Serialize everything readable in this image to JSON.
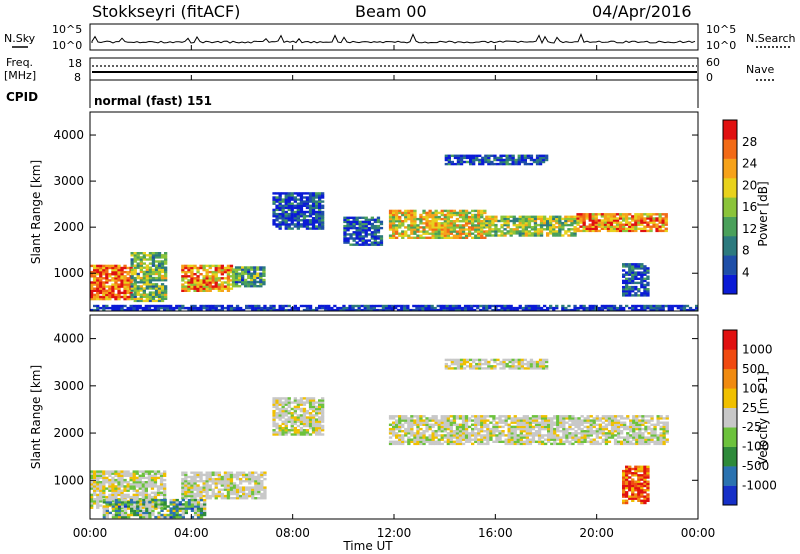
{
  "header": {
    "radar": "Stokkseyri (fitACF)",
    "beam": "Beam 00",
    "date": "04/Apr/2016"
  },
  "noise_panel": {
    "left_label": "N.Sky",
    "left_ticks": [
      "10^5",
      "10^0"
    ],
    "right_ticks": [
      "10^5",
      "10^0"
    ],
    "right_label": "N.Search"
  },
  "freq_panel": {
    "left_label_1": "Freq.",
    "left_label_2": "[MHz]",
    "left_ticks": [
      "18",
      "8"
    ],
    "right_ticks": [
      "60",
      "0"
    ],
    "right_label": "Nave"
  },
  "cpid": {
    "label": "CPID",
    "value": "normal (fast) 151"
  },
  "chart_data": [
    {
      "type": "heatmap",
      "title": "",
      "xlabel": "",
      "ylabel": "Slant Range [km]",
      "xlim": [
        0,
        24
      ],
      "ylim": [
        180,
        4500
      ],
      "yticks": [
        "1000",
        "2000",
        "3000",
        "4000"
      ],
      "colorbar": {
        "label": "Power [dB]",
        "ticks": [
          "4",
          "8",
          "12",
          "16",
          "20",
          "24",
          "28"
        ],
        "range": [
          0,
          32
        ],
        "colors": [
          "#0b1bd6",
          "#1f4fa8",
          "#2c7a7e",
          "#4aa05a",
          "#8bc43a",
          "#e8d21c",
          "#f6a21a",
          "#f26a16",
          "#e01010"
        ]
      },
      "regions": [
        {
          "t0": 0.0,
          "t1": 1.6,
          "r0": 420,
          "r1": 1150,
          "level": 0.85
        },
        {
          "t0": 1.6,
          "t1": 3.0,
          "r0": 380,
          "r1": 1450,
          "level": 0.45
        },
        {
          "t0": 3.6,
          "t1": 5.6,
          "r0": 600,
          "r1": 1150,
          "level": 0.75
        },
        {
          "t0": 5.6,
          "t1": 6.9,
          "r0": 700,
          "r1": 1150,
          "level": 0.35
        },
        {
          "t0": 7.2,
          "t1": 9.2,
          "r0": 1950,
          "r1": 2750,
          "level": 0.12
        },
        {
          "t0": 10.0,
          "t1": 11.5,
          "r0": 1600,
          "r1": 2200,
          "level": 0.12
        },
        {
          "t0": 11.8,
          "t1": 15.6,
          "r0": 1750,
          "r1": 2350,
          "level": 0.6
        },
        {
          "t0": 14.0,
          "t1": 18.0,
          "r0": 3350,
          "r1": 3550,
          "level": 0.12
        },
        {
          "t0": 15.6,
          "t1": 19.2,
          "r0": 1800,
          "r1": 2250,
          "level": 0.5
        },
        {
          "t0": 19.2,
          "t1": 22.8,
          "r0": 1900,
          "r1": 2300,
          "level": 0.75
        },
        {
          "t0": 21.0,
          "t1": 22.0,
          "r0": 500,
          "r1": 1200,
          "level": 0.15
        },
        {
          "t0": 0.0,
          "t1": 24.0,
          "r0": 180,
          "r1": 300,
          "level": 0.05
        }
      ]
    },
    {
      "type": "heatmap",
      "title": "",
      "xlabel": "Time UT",
      "ylabel": "Slant Range [km]",
      "xlim": [
        0,
        24
      ],
      "ylim": [
        180,
        4500
      ],
      "xticks": [
        "00:00",
        "04:00",
        "08:00",
        "12:00",
        "16:00",
        "20:00",
        "00:00"
      ],
      "yticks": [
        "1000",
        "2000",
        "3000",
        "4000"
      ],
      "colorbar": {
        "label": "Velocity [m s-1]",
        "ticks": [
          "1000",
          "500",
          "100",
          "25",
          "-25",
          "-100",
          "-500",
          "-1000"
        ],
        "colors": [
          "#1630c8",
          "#2a72b0",
          "#2e8a3a",
          "#6cc23c",
          "#c8c8c8",
          "#f0c000",
          "#f08a10",
          "#f04a10",
          "#e01010"
        ]
      },
      "regions": [
        {
          "t0": 0.0,
          "t1": 3.0,
          "r0": 400,
          "r1": 1200,
          "level": 0.5
        },
        {
          "t0": 3.6,
          "t1": 6.9,
          "r0": 600,
          "r1": 1150,
          "level": 0.5
        },
        {
          "t0": 0.5,
          "t1": 4.5,
          "r0": 200,
          "r1": 600,
          "level": 0.35
        },
        {
          "t0": 7.2,
          "t1": 9.2,
          "r0": 1950,
          "r1": 2750,
          "level": 0.5
        },
        {
          "t0": 11.8,
          "t1": 22.8,
          "r0": 1750,
          "r1": 2350,
          "level": 0.5
        },
        {
          "t0": 14.0,
          "t1": 18.0,
          "r0": 3350,
          "r1": 3550,
          "level": 0.5
        },
        {
          "t0": 21.0,
          "t1": 22.0,
          "r0": 500,
          "r1": 1300,
          "level": 0.85
        }
      ]
    }
  ]
}
